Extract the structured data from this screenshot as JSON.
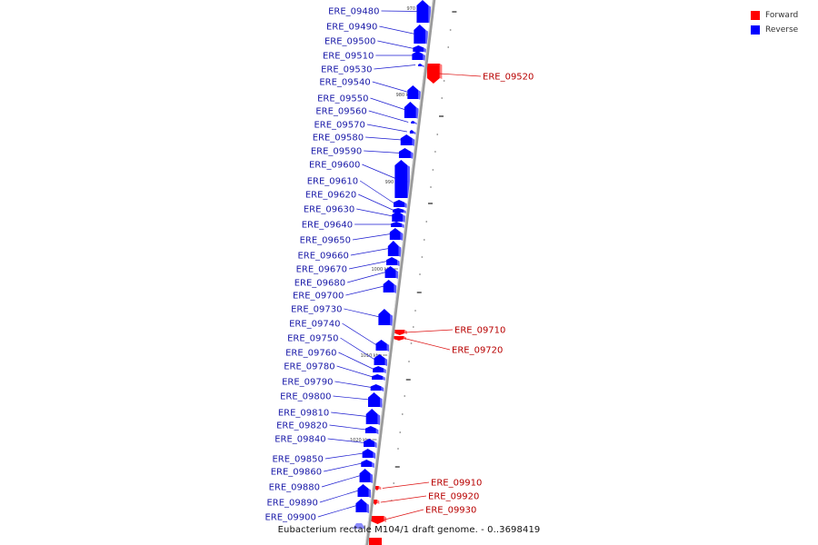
{
  "legend": {
    "items": [
      {
        "label": "Forward",
        "color": "#ff0000"
      },
      {
        "label": "Reverse",
        "color": "#0000ff"
      }
    ]
  },
  "caption": "Eubacterium rectale M104/1 draft genome. - 0..3698419",
  "colors": {
    "reverse_label": "#1a1aa8",
    "forward_label": "#b80000",
    "backbone": "#9a9a9a"
  },
  "ticks": [
    "970 kbp",
    "980 kbp",
    "990 kbp",
    "1000 kbp",
    "1010 kbp",
    "1020 kbp"
  ],
  "genes": {
    "reverse": [
      "ERE_09480",
      "ERE_09490",
      "ERE_09500",
      "ERE_09510",
      "ERE_09530",
      "ERE_09540",
      "ERE_09550",
      "ERE_09560",
      "ERE_09570",
      "ERE_09580",
      "ERE_09590",
      "ERE_09600",
      "ERE_09610",
      "ERE_09620",
      "ERE_09630",
      "ERE_09640",
      "ERE_09650",
      "ERE_09660",
      "ERE_09670",
      "ERE_09680",
      "ERE_09700",
      "ERE_09730",
      "ERE_09740",
      "ERE_09750",
      "ERE_09760",
      "ERE_09780",
      "ERE_09790",
      "ERE_09800",
      "ERE_09810",
      "ERE_09820",
      "ERE_09840",
      "ERE_09850",
      "ERE_09860",
      "ERE_09880",
      "ERE_09890",
      "ERE_09900"
    ],
    "forward": [
      "ERE_09520",
      "ERE_09710",
      "ERE_09720",
      "ERE_09910",
      "ERE_09920",
      "ERE_09930"
    ]
  }
}
